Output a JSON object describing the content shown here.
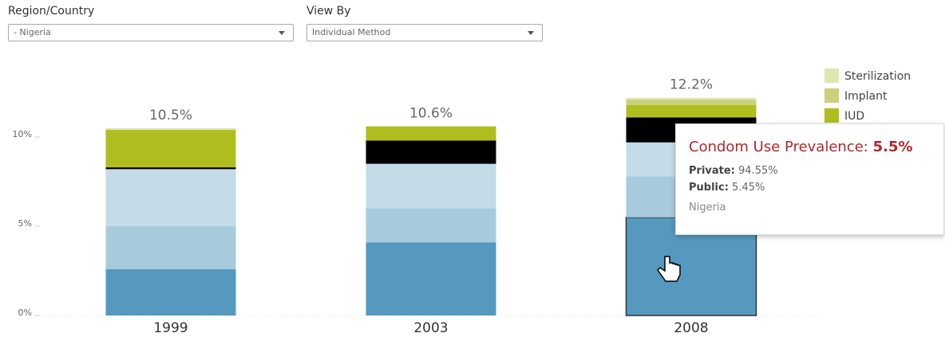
{
  "controls": {
    "region": {
      "label": "Region/Country",
      "value": "- Nigeria"
    },
    "view": {
      "label": "View By",
      "value": "Individual Method"
    }
  },
  "chart_data": {
    "type": "stacked_bar",
    "categories": [
      "1999",
      "2003",
      "2008"
    ],
    "series": [
      {
        "color": "#5599bf",
        "values": [
          2.6,
          4.1,
          5.5
        ]
      },
      {
        "color": "#a7cbdd",
        "values": [
          2.4,
          1.9,
          2.3
        ]
      },
      {
        "color": "#c4dbe8",
        "values": [
          3.2,
          2.5,
          1.9
        ]
      },
      {
        "color": "#000000",
        "values": [
          0.1,
          1.3,
          1.4
        ]
      },
      {
        "name": "IUD",
        "color": "#b0bd1f",
        "values": [
          2.1,
          0.8,
          0.7
        ]
      },
      {
        "name": "Implant",
        "color": "#c9d17a",
        "values": [
          0,
          0,
          0.3
        ]
      },
      {
        "name": "Sterilization",
        "color": "#dfe7af",
        "values": [
          0.1,
          0,
          0.1
        ]
      }
    ],
    "totals": [
      10.5,
      10.6,
      12.2
    ],
    "total_labels": [
      "10.5%",
      "10.6%",
      "12.2%"
    ],
    "ylim": [
      0,
      12.5
    ],
    "yticks": [
      {
        "value": 0,
        "label": "0%"
      },
      {
        "value": 5,
        "label": "5%"
      },
      {
        "value": 10,
        "label": "10%"
      }
    ],
    "legend": "top-right"
  },
  "tooltip": {
    "title": "Condom Use Prevalence:",
    "value": "5.5%",
    "rows": [
      {
        "label": "Private:",
        "value": "94.55%"
      },
      {
        "label": "Public:",
        "value": "5.45%"
      }
    ],
    "footer": "Nigeria"
  }
}
